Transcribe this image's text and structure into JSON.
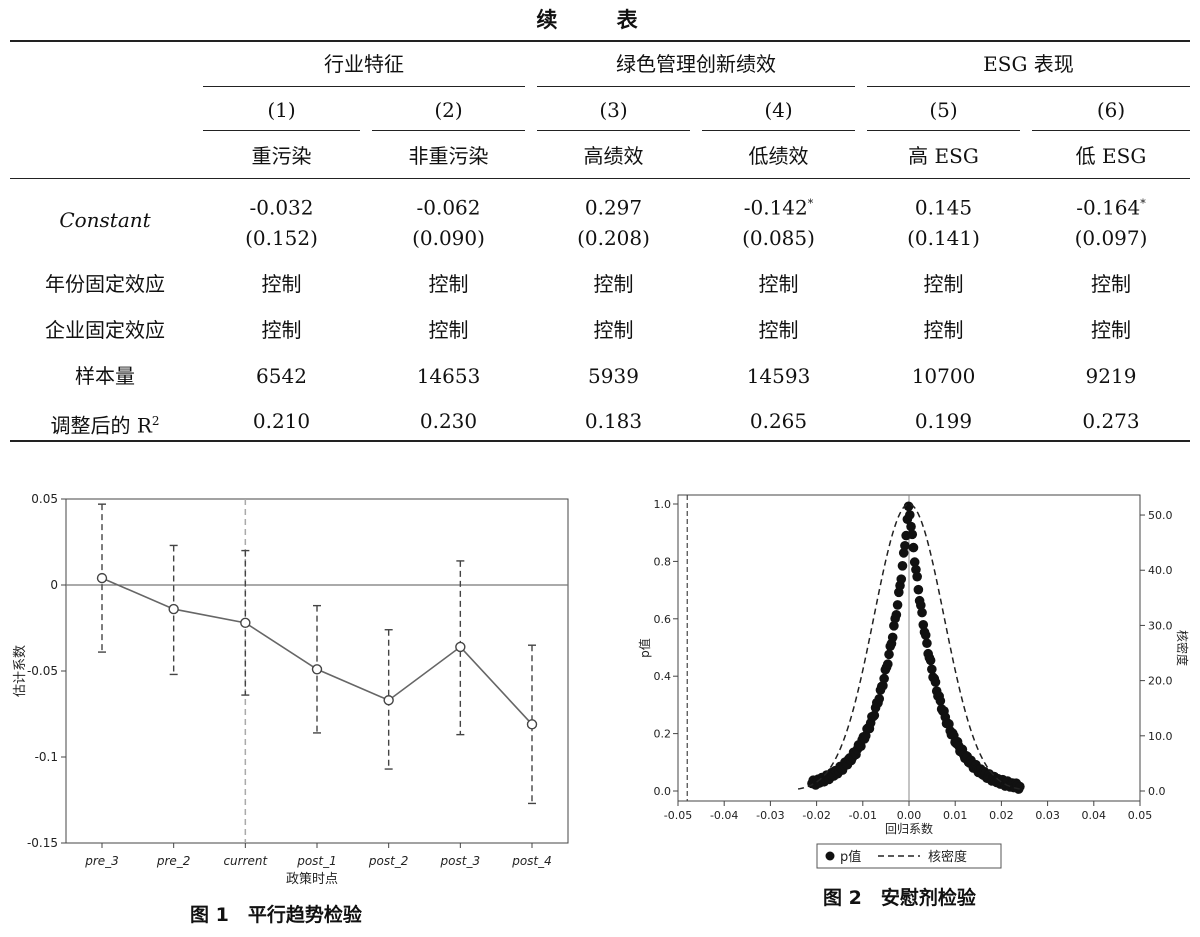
{
  "table": {
    "title": "续 表",
    "groups": [
      "行业特征",
      "绿色管理创新绩效",
      "ESG 表现"
    ],
    "col_nums": [
      "(1)",
      "(2)",
      "(3)",
      "(4)",
      "(5)",
      "(6)"
    ],
    "col_names": [
      "重污染",
      "非重污染",
      "高绩效",
      "低绩效",
      "高 ESG",
      "低 ESG"
    ],
    "rows": {
      "constant": {
        "label": "Constant",
        "coef": [
          "-0.032",
          "-0.062",
          "0.297",
          "-0.142",
          "0.145",
          "-0.164"
        ],
        "stars": [
          "",
          "",
          "",
          "*",
          "",
          "*"
        ],
        "se": [
          "(0.152)",
          "(0.090)",
          "(0.208)",
          "(0.085)",
          "(0.141)",
          "(0.097)"
        ]
      },
      "year_fe": {
        "label": "年份固定效应",
        "values": [
          "控制",
          "控制",
          "控制",
          "控制",
          "控制",
          "控制"
        ]
      },
      "firm_fe": {
        "label": "企业固定效应",
        "values": [
          "控制",
          "控制",
          "控制",
          "控制",
          "控制",
          "控制"
        ]
      },
      "n": {
        "label": "样本量",
        "values": [
          "6542",
          "14653",
          "5939",
          "14593",
          "10700",
          "9219"
        ]
      },
      "r2": {
        "label": "调整后的 R",
        "label_sup": "2",
        "values": [
          "0.210",
          "0.230",
          "0.183",
          "0.265",
          "0.199",
          "0.273"
        ]
      }
    }
  },
  "figure1": {
    "caption": "图 1　平行趋势检验"
  },
  "figure2": {
    "caption": "图 2　安慰剂检验"
  },
  "chart_data": [
    {
      "type": "line",
      "xlabel": "政策时点",
      "ylabel": "估计系数",
      "categories": [
        "pre_3",
        "pre_2",
        "current",
        "post_1",
        "post_2",
        "post_3",
        "post_4"
      ],
      "values": [
        0.004,
        -0.014,
        -0.022,
        -0.049,
        -0.067,
        -0.036,
        -0.081
      ],
      "ci_lower": [
        -0.039,
        -0.052,
        -0.064,
        -0.086,
        -0.107,
        -0.087,
        -0.127
      ],
      "ci_upper": [
        0.047,
        0.023,
        0.02,
        -0.012,
        -0.026,
        0.014,
        -0.035
      ],
      "ylim": [
        -0.15,
        0.05
      ],
      "yticks": [
        "0.05",
        "0",
        "-0.05",
        "-0.1",
        "-0.15"
      ],
      "reference_line_y": 0,
      "reference_line_x": "current"
    },
    {
      "type": "scatter",
      "xlabel": "回归系数",
      "ylabel": "p值",
      "y2label": "核密度",
      "xlim": [
        -0.05,
        0.05
      ],
      "ylim": [
        0,
        1
      ],
      "y2lim": [
        0,
        52
      ],
      "xticks": [
        "-0.05",
        "-0.04",
        "-0.03",
        "-0.02",
        "-0.01",
        "0.00",
        "0.01",
        "0.02",
        "0.03",
        "0.04",
        "0.05"
      ],
      "yticks": [
        "0.0",
        "0.2",
        "0.4",
        "0.6",
        "0.8",
        "1.0"
      ],
      "y2ticks": [
        "0.0",
        "10.0",
        "20.0",
        "30.0",
        "40.0",
        "50.0"
      ],
      "true_coefficient": -0.048,
      "series": [
        {
          "name": "p值",
          "kind": "scatter",
          "x_range": [
            -0.021,
            0.024
          ],
          "peak": 1.0
        },
        {
          "name": "核密度",
          "kind": "dashed-line",
          "peak": 52
        }
      ],
      "legend": [
        "p值",
        "核密度"
      ],
      "legend_position": "bottom"
    }
  ]
}
